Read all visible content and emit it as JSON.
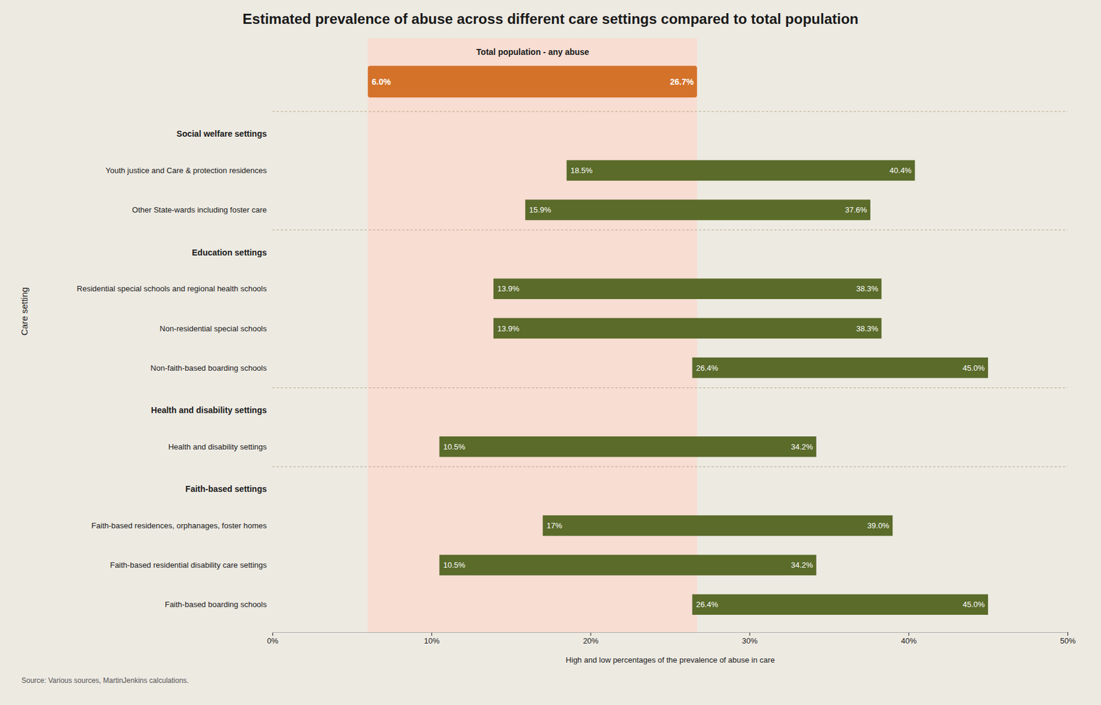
{
  "chart_data": {
    "type": "bar",
    "orientation": "horizontal",
    "title": "Estimated prevalence of abuse across different care settings compared to total population",
    "xlabel": "High and low percentages of the prevalence of abuse in care",
    "ylabel": "Care setting",
    "source": "Source: Various sources, MartinJenkins calculations.",
    "background_color": "#edeae2",
    "color": "#5a6b2a",
    "bar_text_color": "#ffffff",
    "data_labels": true,
    "categories": [
      "Youth justice and Care & protection residences",
      "Other State-wards including foster care",
      "Residential special schools and regional health schools",
      "Non-residential special schools",
      "Non-faith-based boarding schools",
      "Health and disability settings",
      "Faith-based residences, orphanages, foster homes",
      "Faith-based residential disability care settings",
      "Faith-based boarding schools"
    ],
    "low": [
      18.5,
      15.9,
      13.9,
      13.9,
      26.4,
      10.5,
      17.0,
      10.5,
      26.4
    ],
    "high": [
      40.4,
      37.6,
      38.3,
      38.3,
      45.0,
      34.2,
      39.0,
      34.2,
      45.0
    ],
    "low_labels": [
      "18.5%",
      "15.9%",
      "13.9%",
      "13.9%",
      "26.4%",
      "10.5%",
      "17%",
      "10.5%",
      "26.4%"
    ],
    "high_labels": [
      "40.4%",
      "37.6%",
      "38.3%",
      "38.3%",
      "45.0%",
      "34.2%",
      "39.0%",
      "34.2%",
      "45.0%"
    ],
    "groups": [
      {
        "label": "Social welfare settings",
        "categories": [
          "Youth justice and Care & protection residences",
          "Other State-wards including foster care"
        ]
      },
      {
        "label": "Education settings",
        "categories": [
          "Residential special schools and regional health schools",
          "Non-residential special schools",
          "Non-faith-based boarding schools"
        ]
      },
      {
        "label": "Health and disability settings",
        "categories": [
          "Health and disability settings"
        ]
      },
      {
        "label": "Faith-based settings",
        "categories": [
          "Faith-based residences, orphanages, foster homes",
          "Faith-based residential disability care settings",
          "Faith-based boarding schools"
        ]
      }
    ],
    "total_population": {
      "label": "Total population - any abuse",
      "low": 6.0,
      "high": 26.7,
      "value_labels": [
        "6.0%",
        "26.7%"
      ],
      "color": "#d4722a",
      "shade_color": "#f7ddd2"
    },
    "xlim": [
      0,
      50
    ],
    "xticks": [
      {
        "value": 0,
        "label": "0%"
      },
      {
        "value": 10,
        "label": "10%"
      },
      {
        "value": 20,
        "label": "20%"
      },
      {
        "value": 30,
        "label": "30%"
      },
      {
        "value": 40,
        "label": "40%"
      },
      {
        "value": 50,
        "label": "50%"
      }
    ]
  }
}
